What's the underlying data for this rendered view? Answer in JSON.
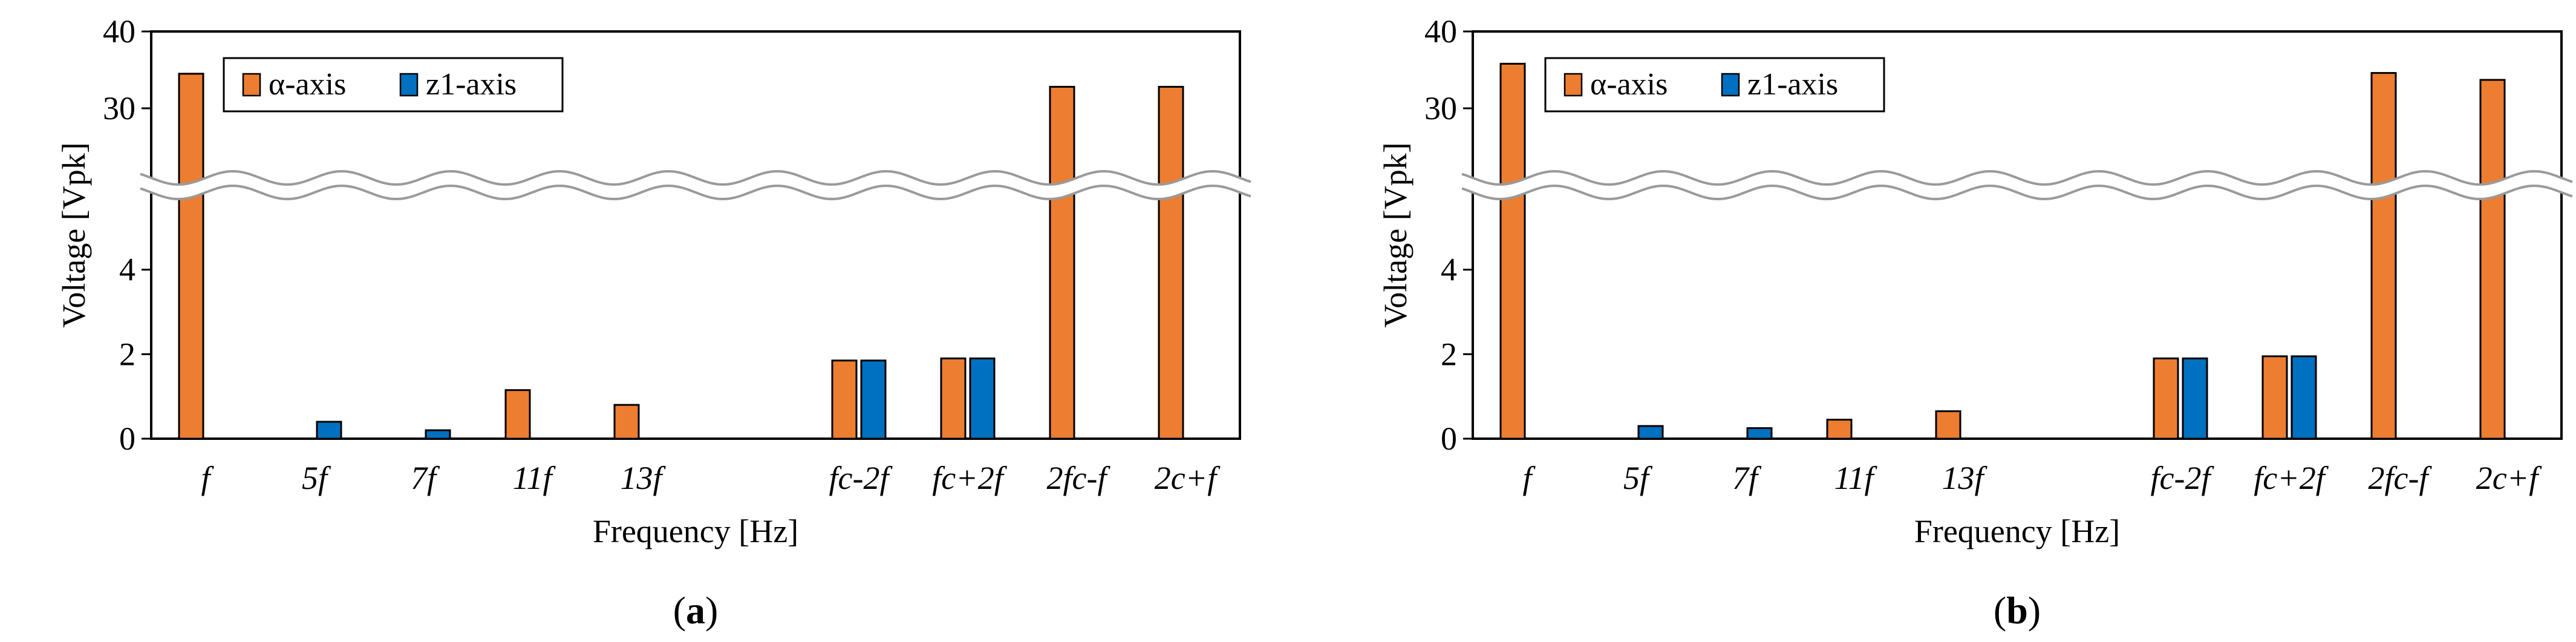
{
  "colors": {
    "alpha": "#ED7D31",
    "z1": "#0070C0",
    "bar_stroke": "#000000",
    "break_line": "#9a9a9a"
  },
  "chart_data": [
    {
      "type": "bar",
      "panel": "a",
      "panel_label": "a",
      "xlabel": "Frequency [Hz]",
      "ylabel": "Voltage [Vpk]",
      "categories": [
        "f",
        "5f",
        "7f",
        "11f",
        "13f",
        "",
        "fc-2f",
        "fc+2f",
        "2fc-f",
        "2c+f"
      ],
      "y_ticks": [
        "0",
        "2",
        "4",
        "30",
        "40"
      ],
      "axis_break": {
        "lower_range": [
          0,
          6
        ],
        "upper_range": [
          20,
          40
        ]
      },
      "series": [
        {
          "name": "α-axis",
          "values": [
            34.5,
            0,
            0,
            1.15,
            0.8,
            0,
            1.85,
            1.9,
            32.8,
            32.8
          ]
        },
        {
          "name": "z1-axis",
          "values": [
            0,
            0.4,
            0.2,
            0,
            0,
            0,
            1.85,
            1.9,
            0,
            0
          ]
        }
      ],
      "legend": [
        "α-axis",
        "z1-axis"
      ],
      "legend_position": "top-left"
    },
    {
      "type": "bar",
      "panel": "b",
      "panel_label": "b",
      "xlabel": "Frequency [Hz]",
      "ylabel": "Voltage [Vpk]",
      "categories": [
        "f",
        "5f",
        "7f",
        "11f",
        "13f",
        "",
        "fc-2f",
        "fc+2f",
        "2fc-f",
        "2c+f"
      ],
      "y_ticks": [
        "0",
        "2",
        "4",
        "30",
        "40"
      ],
      "axis_break": {
        "lower_range": [
          0,
          6
        ],
        "upper_range": [
          20,
          40
        ]
      },
      "series": [
        {
          "name": "α-axis",
          "values": [
            35.8,
            0,
            0,
            0.45,
            0.65,
            0,
            1.9,
            1.95,
            34.6,
            33.7
          ]
        },
        {
          "name": "z1-axis",
          "values": [
            0,
            0.3,
            0.25,
            0,
            0,
            0,
            1.9,
            1.95,
            0,
            0
          ]
        }
      ],
      "legend": [
        "α-axis",
        "z1-axis"
      ],
      "legend_position": "top-left"
    }
  ]
}
